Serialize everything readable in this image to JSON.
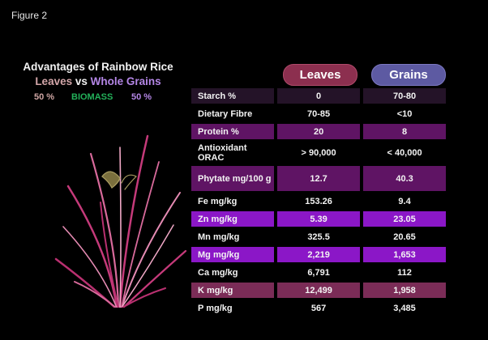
{
  "figure_label": "Figure 2",
  "title": "Advantages of Rainbow Rice",
  "subtitle": {
    "left": "Leaves",
    "middle": "vs",
    "right": "Whole Grains"
  },
  "biomass": {
    "left_pct": "50 %",
    "label": "BIOMASS",
    "right_pct": "50 %"
  },
  "columns": {
    "leaves": "Leaves",
    "grains": "Grains"
  },
  "colors": {
    "leaves_accent": "#8c2f4f",
    "grains_accent": "#5d5aa2",
    "row_light_purple": "#8b17c7",
    "row_dark_purple": "#5f1464",
    "row_mauve": "#7b2c57",
    "row_dark": "#241328"
  },
  "plant_image": "red-purple-rice-plant-illustration",
  "rows": [
    {
      "label": "Starch %",
      "leaves": "0",
      "grains": "70-80",
      "style": "dark"
    },
    {
      "label": "Dietary Fibre",
      "leaves": "70-85",
      "grains": "<10",
      "style": "none"
    },
    {
      "label": "Protein %",
      "leaves": "20",
      "grains": "8",
      "style": "purple"
    },
    {
      "label": "Antioxidant ORAC",
      "leaves": "> 90,000",
      "grains": "< 40,000",
      "style": "none"
    },
    {
      "label": "Phytate mg/100 g",
      "leaves": "12.7",
      "grains": "40.3",
      "style": "darkpurple"
    },
    {
      "label": "Fe mg/kg",
      "leaves": "153.26",
      "grains": "9.4",
      "style": "none"
    },
    {
      "label": "Zn mg/kg",
      "leaves": "5.39",
      "grains": "23.05",
      "style": "lightpurple"
    },
    {
      "label": "Mn mg/kg",
      "leaves": "325.5",
      "grains": "20.65",
      "style": "none"
    },
    {
      "label": "Mg mg/kg",
      "leaves": "2,219",
      "grains": "1,653",
      "style": "lightpurple"
    },
    {
      "label": "Ca mg/kg",
      "leaves": "6,791",
      "grains": "112",
      "style": "none"
    },
    {
      "label": "K mg/kg",
      "leaves": "12,499",
      "grains": "1,958",
      "style": "mauve"
    },
    {
      "label": "P mg/kg",
      "leaves": "567",
      "grains": "3,485",
      "style": "none"
    }
  ]
}
